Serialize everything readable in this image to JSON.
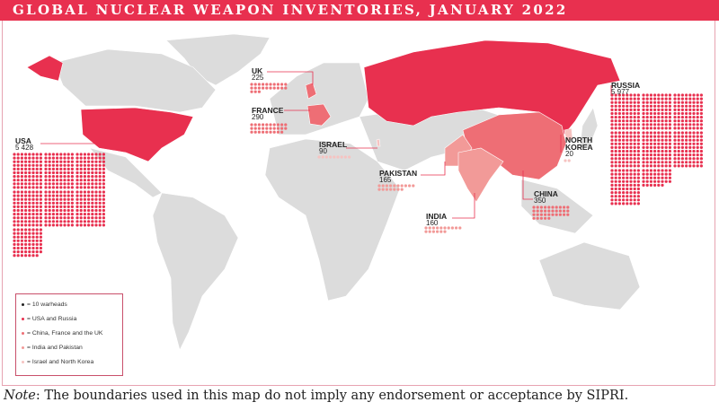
{
  "title": "GLOBAL NUCLEAR WEAPON INVENTORIES, JANUARY 2022",
  "colors": {
    "title_bar": "#e8304f",
    "usa_russia": "#e8304f",
    "china_france_uk": "#ee6e75",
    "india_pakistan": "#f29a98",
    "israel_nk": "#f6c3c1",
    "land": "#dcdcdc",
    "dot_unit": "#222222"
  },
  "countries": [
    {
      "id": "usa",
      "name": "USA",
      "warheads": "5 428",
      "count": 5428,
      "group": "usa_russia"
    },
    {
      "id": "russia",
      "name": "RUSSIA",
      "warheads": "5 977",
      "count": 5977,
      "group": "usa_russia"
    },
    {
      "id": "uk",
      "name": "UK",
      "warheads": "225",
      "count": 225,
      "group": "china_france_uk"
    },
    {
      "id": "france",
      "name": "FRANCE",
      "warheads": "290",
      "count": 290,
      "group": "china_france_uk"
    },
    {
      "id": "israel",
      "name": "ISRAEL",
      "warheads": "90",
      "count": 90,
      "group": "israel_nk"
    },
    {
      "id": "pakistan",
      "name": "PAKISTAN",
      "warheads": "165",
      "count": 165,
      "group": "india_pakistan"
    },
    {
      "id": "india",
      "name": "INDIA",
      "warheads": "160",
      "count": 160,
      "group": "india_pakistan"
    },
    {
      "id": "china",
      "name": "CHINA",
      "warheads": "350",
      "count": 350,
      "group": "china_france_uk"
    },
    {
      "id": "north_korea",
      "name": "NORTH KOREA",
      "warheads": "20",
      "count": 20,
      "group": "israel_nk"
    }
  ],
  "legend": [
    {
      "label": "= 10 warheads",
      "color": "#222222"
    },
    {
      "label": "= USA and Russia",
      "color": "#e8304f"
    },
    {
      "label": "= China, France and the UK",
      "color": "#ee6e75"
    },
    {
      "label": "= India and Pakistan",
      "color": "#f29a98"
    },
    {
      "label": "= Israel and North Korea",
      "color": "#f6c3c1"
    }
  ],
  "note": {
    "label": "Note",
    "text": ": The boundaries used in this map do not imply any endorsement or acceptance by SIPRI."
  }
}
